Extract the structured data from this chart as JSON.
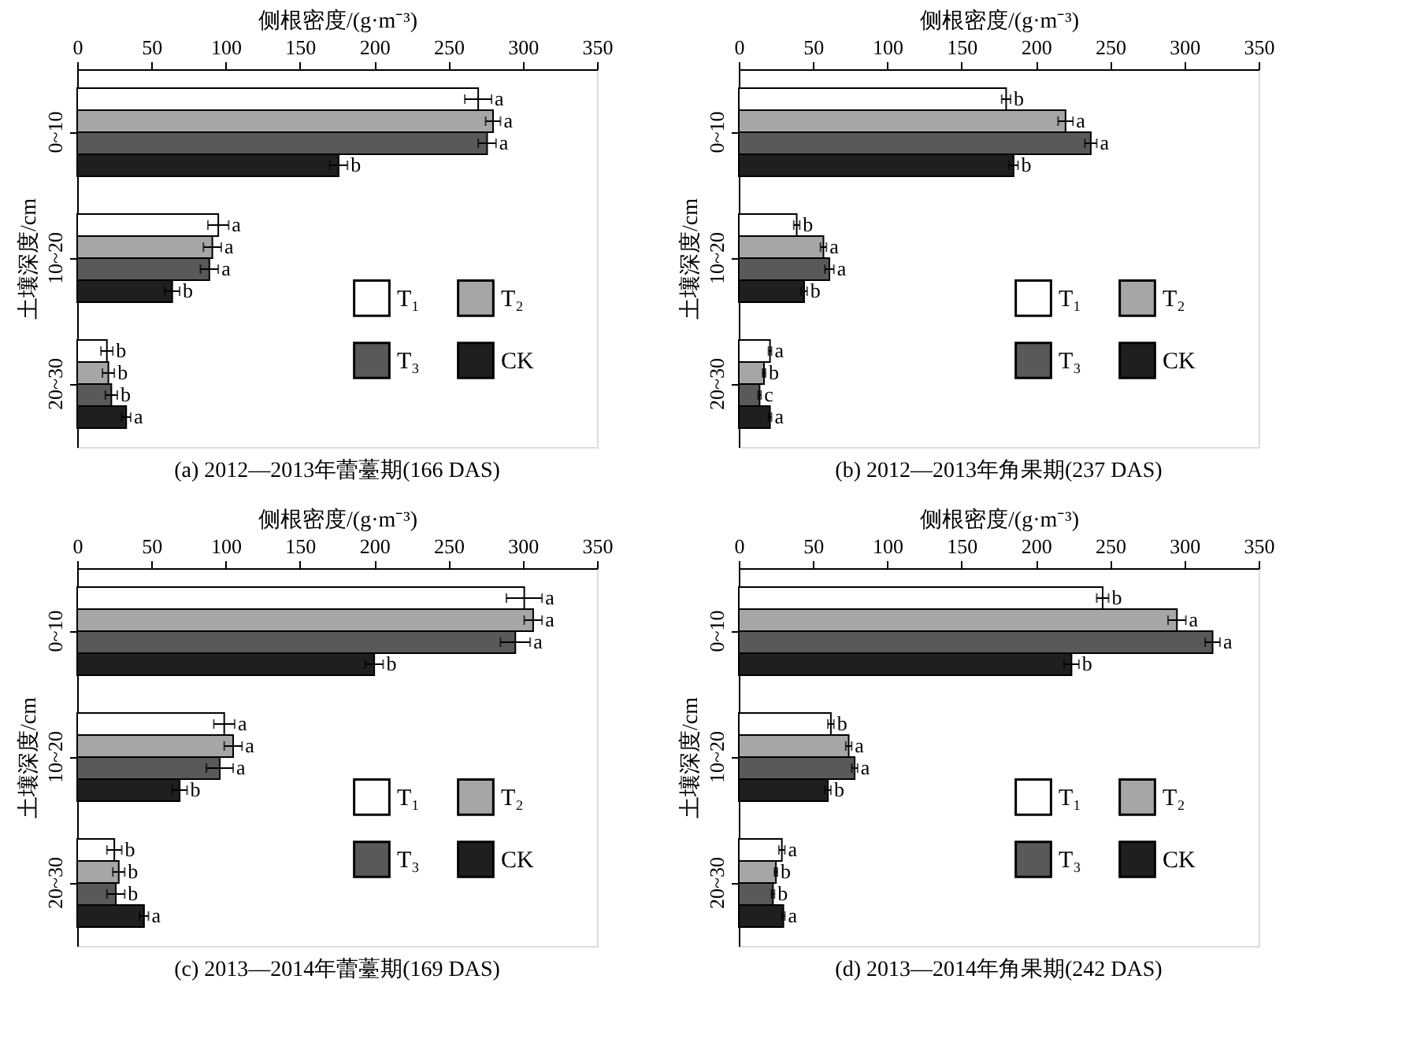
{
  "chart_data": [
    {
      "type": "bar",
      "orientation": "horizontal",
      "title": "(a) 2012—2013年蕾薹期(166 DAS)",
      "xlabel": "侧根密度/(g·m⁻³)",
      "ylabel": "土壤深度/cm",
      "categories": [
        "0~10",
        "10~20",
        "20~30"
      ],
      "xlim": [
        0,
        350
      ],
      "xticks": [
        0,
        50,
        100,
        150,
        200,
        250,
        300,
        350
      ],
      "legend": "bottom right",
      "grid": false,
      "series": [
        {
          "name": "T₁",
          "color": "#ffffff",
          "values": [
            270,
            95,
            20
          ],
          "errors": [
            9,
            7,
            4
          ],
          "value_labels": [
            "a",
            "a",
            "b"
          ]
        },
        {
          "name": "T₂",
          "color": "#a6a6a6",
          "values": [
            280,
            91,
            21
          ],
          "errors": [
            5,
            6,
            4
          ],
          "value_labels": [
            "a",
            "a",
            "b"
          ]
        },
        {
          "name": "T₃",
          "color": "#595959",
          "values": [
            276,
            89,
            23
          ],
          "errors": [
            6,
            6,
            4
          ],
          "value_labels": [
            "a",
            "a",
            "b"
          ]
        },
        {
          "name": "CK",
          "color": "#1f1f1f",
          "values": [
            176,
            64,
            33
          ],
          "errors": [
            6,
            5,
            3
          ],
          "value_labels": [
            "b",
            "b",
            "a"
          ]
        }
      ]
    },
    {
      "type": "bar",
      "orientation": "horizontal",
      "title": "(b) 2012—2013年角果期(237 DAS)",
      "xlabel": "侧根密度/(g·m⁻³)",
      "ylabel": "土壤深度/cm",
      "categories": [
        "0~10",
        "10~20",
        "20~30"
      ],
      "xlim": [
        0,
        350
      ],
      "xticks": [
        0,
        50,
        100,
        150,
        200,
        250,
        300,
        350
      ],
      "legend": "bottom right",
      "grid": false,
      "series": [
        {
          "name": "T₁",
          "color": "#ffffff",
          "values": [
            180,
            39,
            21
          ],
          "errors": [
            3,
            2,
            1
          ],
          "value_labels": [
            "b",
            "b",
            "a"
          ]
        },
        {
          "name": "T₂",
          "color": "#a6a6a6",
          "values": [
            220,
            57,
            17
          ],
          "errors": [
            5,
            2,
            1
          ],
          "value_labels": [
            "a",
            "a",
            "b"
          ]
        },
        {
          "name": "T₃",
          "color": "#595959",
          "values": [
            237,
            61,
            14
          ],
          "errors": [
            4,
            3,
            1
          ],
          "value_labels": [
            "a",
            "a",
            "c"
          ]
        },
        {
          "name": "CK",
          "color": "#1f1f1f",
          "values": [
            185,
            44,
            21
          ],
          "errors": [
            3,
            2,
            1
          ],
          "value_labels": [
            "b",
            "b",
            "a"
          ]
        }
      ]
    },
    {
      "type": "bar",
      "orientation": "horizontal",
      "title": "(c) 2013—2014年蕾薹期(169 DAS)",
      "xlabel": "侧根密度/(g·m⁻³)",
      "ylabel": "土壤深度/cm",
      "categories": [
        "0~10",
        "10~20",
        "20~30"
      ],
      "xlim": [
        0,
        350
      ],
      "xticks": [
        0,
        50,
        100,
        150,
        200,
        250,
        300,
        350
      ],
      "legend": "bottom right",
      "grid": false,
      "series": [
        {
          "name": "T₁",
          "color": "#ffffff",
          "values": [
            301,
            99,
            25
          ],
          "errors": [
            12,
            7,
            5
          ],
          "value_labels": [
            "a",
            "a",
            "b"
          ]
        },
        {
          "name": "T₂",
          "color": "#a6a6a6",
          "values": [
            307,
            105,
            28
          ],
          "errors": [
            6,
            6,
            4
          ],
          "value_labels": [
            "a",
            "a",
            "b"
          ]
        },
        {
          "name": "T₃",
          "color": "#595959",
          "values": [
            295,
            96,
            26
          ],
          "errors": [
            10,
            9,
            6
          ],
          "value_labels": [
            "a",
            "a",
            "b"
          ]
        },
        {
          "name": "CK",
          "color": "#1f1f1f",
          "values": [
            200,
            69,
            45
          ],
          "errors": [
            6,
            5,
            3
          ],
          "value_labels": [
            "b",
            "b",
            "a"
          ]
        }
      ]
    },
    {
      "type": "bar",
      "orientation": "horizontal",
      "title": "(d) 2013—2014年角果期(242 DAS)",
      "xlabel": "侧根密度/(g·m⁻³)",
      "ylabel": "土壤深度/cm",
      "categories": [
        "0~10",
        "10~20",
        "20~30"
      ],
      "xlim": [
        0,
        350
      ],
      "xticks": [
        0,
        50,
        100,
        150,
        200,
        250,
        300,
        350
      ],
      "legend": "bottom right",
      "grid": false,
      "series": [
        {
          "name": "T₁",
          "color": "#ffffff",
          "values": [
            245,
            62,
            29
          ],
          "errors": [
            4,
            2,
            2
          ],
          "value_labels": [
            "b",
            "b",
            "a"
          ]
        },
        {
          "name": "T₂",
          "color": "#a6a6a6",
          "values": [
            295,
            74,
            25
          ],
          "errors": [
            6,
            2,
            1
          ],
          "value_labels": [
            "a",
            "a",
            "b"
          ]
        },
        {
          "name": "T₃",
          "color": "#595959",
          "values": [
            319,
            78,
            23
          ],
          "errors": [
            5,
            2,
            1
          ],
          "value_labels": [
            "a",
            "a",
            "b"
          ]
        },
        {
          "name": "CK",
          "color": "#1f1f1f",
          "values": [
            224,
            60,
            30
          ],
          "errors": [
            5,
            2,
            1
          ],
          "value_labels": [
            "b",
            "b",
            "a"
          ]
        }
      ]
    }
  ]
}
